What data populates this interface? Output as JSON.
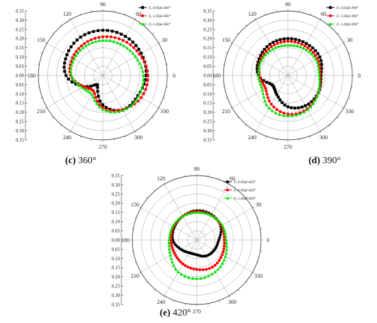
{
  "chart_data": [
    {
      "type": "polar",
      "caption_letter": "(c)",
      "caption_text": " 360°",
      "radial_ticks": [
        "0.35",
        "0.30",
        "0.25",
        "0.20",
        "0.15",
        "0.10",
        "0.05",
        "0.00",
        "0.05",
        "0.10",
        "0.15",
        "0.20",
        "0.25",
        "0.30",
        "0.35"
      ],
      "angle_labels": [
        "0",
        "30",
        "60",
        "90",
        "120",
        "150",
        "180",
        "210",
        "240",
        "270",
        "300",
        "330"
      ],
      "rlim": [
        0,
        0.35
      ],
      "series": [
        {
          "name": "Fr 0.6Qd-360°",
          "label_sub": "0.6Qd-360°",
          "color": "#000000",
          "marker": "square",
          "r": [
            0.235,
            0.24,
            0.245,
            0.245,
            0.24,
            0.225,
            0.2,
            0.12,
            0.06,
            0.16,
            0.215,
            0.22
          ]
        },
        {
          "name": "Fr 1.0Qd-360°",
          "label_sub": "1.0Qd-360°",
          "color": "#ff0000",
          "marker": "circle",
          "r": [
            0.245,
            0.23,
            0.22,
            0.21,
            0.2,
            0.19,
            0.175,
            0.12,
            0.1,
            0.175,
            0.215,
            0.24
          ]
        },
        {
          "name": "Fr 1.4Qd-360°",
          "label_sub": "1.4Qd-360°",
          "color": "#00e000",
          "marker": "triangle",
          "r": [
            0.22,
            0.205,
            0.195,
            0.19,
            0.185,
            0.18,
            0.17,
            0.13,
            0.12,
            0.185,
            0.22,
            0.225
          ]
        }
      ]
    },
    {
      "type": "polar",
      "caption_letter": "(d)",
      "caption_text": " 390°",
      "radial_ticks": [
        "0.35",
        "0.30",
        "0.25",
        "0.20",
        "0.15",
        "0.10",
        "0.05",
        "0.00",
        "0.05",
        "0.10",
        "0.15",
        "0.20",
        "0.25",
        "0.30",
        "0.35"
      ],
      "angle_labels": [
        "0",
        "30",
        "60",
        "90",
        "120",
        "150",
        "180",
        "210",
        "240",
        "270",
        "300",
        "330"
      ],
      "rlim": [
        0,
        0.35
      ],
      "series": [
        {
          "name": "Fr 0.6Qd-390°",
          "label_sub": "0.6Qd-390°",
          "color": "#000000",
          "marker": "square",
          "r": [
            0.18,
            0.2,
            0.2,
            0.2,
            0.195,
            0.18,
            0.16,
            0.1,
            0.12,
            0.17,
            0.19,
            0.19
          ]
        },
        {
          "name": "Fr 1.0Qd-390°",
          "label_sub": "1.0Qd-390°",
          "color": "#ff0000",
          "marker": "circle",
          "r": [
            0.175,
            0.185,
            0.185,
            0.185,
            0.18,
            0.17,
            0.155,
            0.14,
            0.18,
            0.21,
            0.21,
            0.19
          ]
        },
        {
          "name": "Fr 1.4Qd-390°",
          "label_sub": "1.4Qd-390°",
          "color": "#00e000",
          "marker": "triangle",
          "r": [
            0.17,
            0.175,
            0.17,
            0.165,
            0.165,
            0.165,
            0.16,
            0.16,
            0.205,
            0.22,
            0.215,
            0.19
          ]
        }
      ]
    },
    {
      "type": "polar",
      "caption_letter": "(e)",
      "caption_text": " 420°",
      "radial_ticks": [
        "0.35",
        "0.30",
        "0.25",
        "0.20",
        "0.15",
        "0.10",
        "0.05",
        "0.00",
        "0.05",
        "0.10",
        "0.15",
        "0.20",
        "0.25",
        "0.30",
        "0.35"
      ],
      "angle_labels": [
        "0",
        "30",
        "60",
        "90",
        "120",
        "150",
        "180",
        "210",
        "240",
        "270",
        "300",
        "330"
      ],
      "rlim": [
        0,
        0.35
      ],
      "series": [
        {
          "name": "Fr 0.6Qd-420°",
          "label_sub": "0.6Qd-420°",
          "color": "#000000",
          "marker": "circle",
          "r": [
            0.12,
            0.15,
            0.16,
            0.16,
            0.15,
            0.14,
            0.13,
            0.1,
            0.08,
            0.08,
            0.1,
            0.11
          ]
        },
        {
          "name": "Fr 1.0Qd-420°",
          "label_sub": "1.0Qd-420°",
          "color": "#ff0000",
          "marker": "circle",
          "r": [
            0.15,
            0.155,
            0.155,
            0.155,
            0.15,
            0.145,
            0.14,
            0.14,
            0.15,
            0.16,
            0.17,
            0.16
          ]
        },
        {
          "name": "Fr 1.4Qd-420°",
          "label_sub": "1.4Qd-420°",
          "color": "#00e000",
          "marker": "triangle",
          "r": [
            0.16,
            0.16,
            0.155,
            0.15,
            0.15,
            0.15,
            0.15,
            0.165,
            0.2,
            0.21,
            0.2,
            0.18
          ]
        }
      ]
    }
  ]
}
